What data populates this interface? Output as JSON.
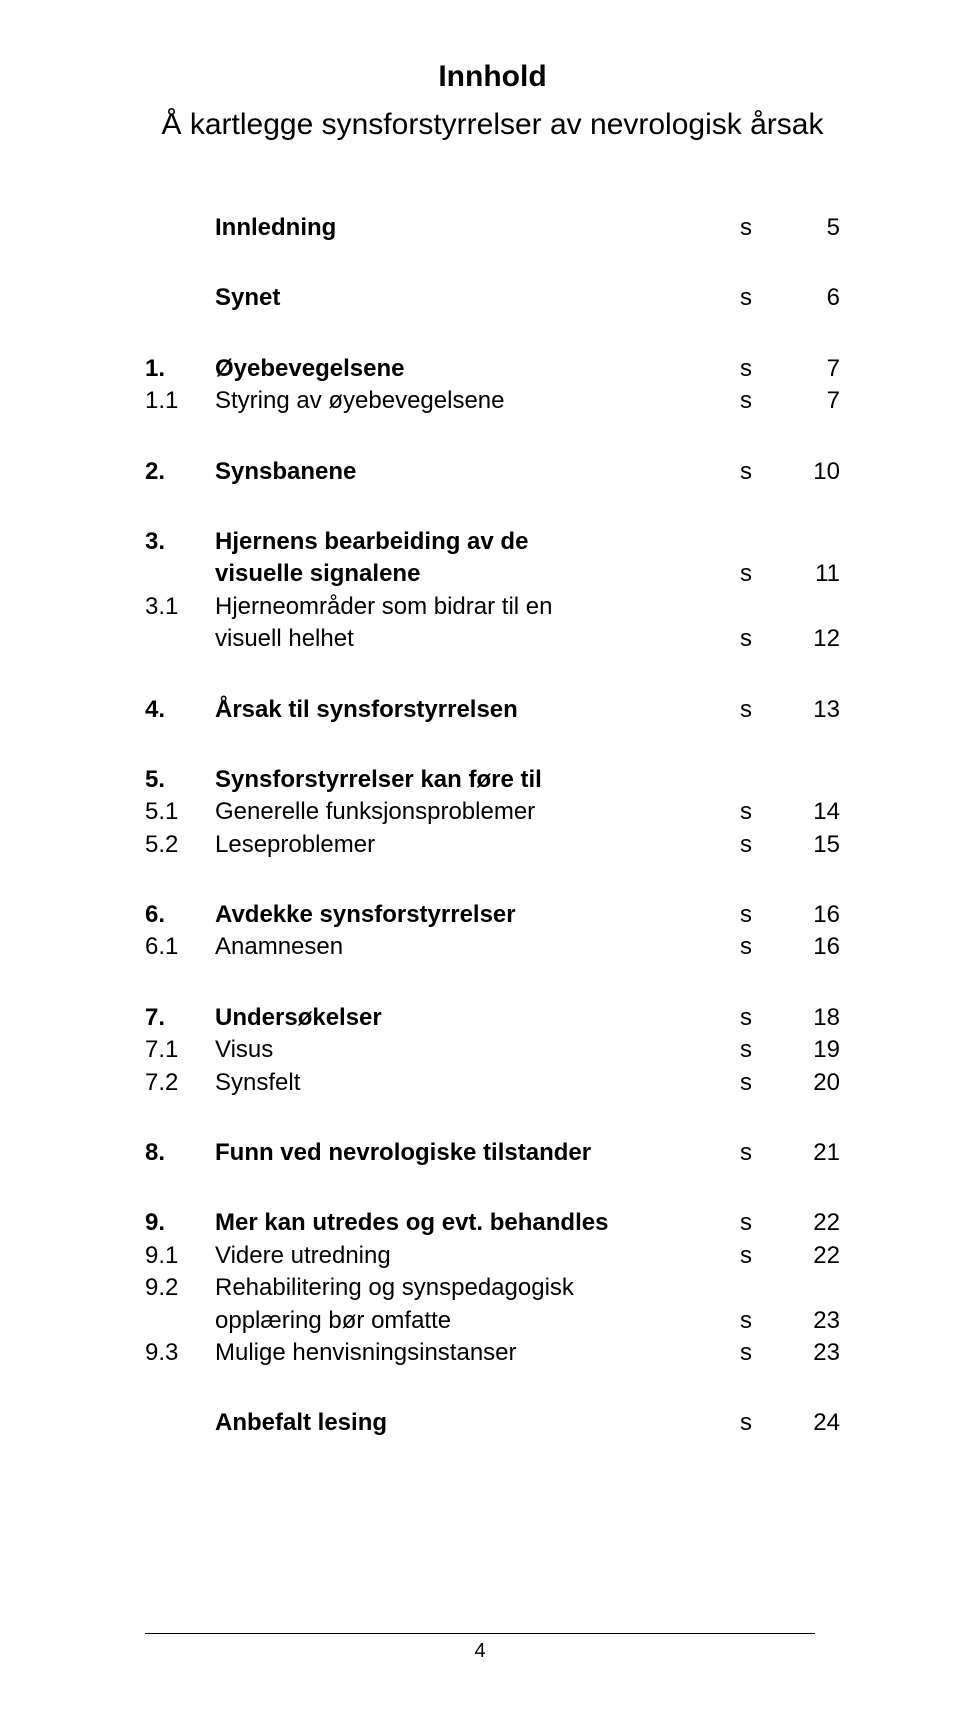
{
  "title": "Innhold",
  "subtitle": "Å kartlegge synsforstyrrelser av nevrologisk årsak",
  "s": "s",
  "toc": {
    "innledning": {
      "label": "Innledning",
      "page": "5"
    },
    "synet": {
      "label": "Synet",
      "page": "6"
    },
    "sec1": {
      "num": "1.",
      "label": "Øyebevegelsene",
      "page": "7",
      "sub1": {
        "num": "1.1",
        "label": "Styring av øyebevegelsene",
        "page": "7"
      }
    },
    "sec2": {
      "num": "2.",
      "label": "Synsbanene",
      "page": "10"
    },
    "sec3": {
      "num": "3.",
      "label_line1": "Hjernens bearbeiding av de",
      "label_line2": "visuelle signalene",
      "page": "11",
      "sub1": {
        "num": "3.1",
        "label_line1": "Hjerneområder som bidrar til en",
        "label_line2": "visuell helhet",
        "page": "12"
      }
    },
    "sec4": {
      "num": "4.",
      "label": "Årsak til synsforstyrrelsen",
      "page": "13"
    },
    "sec5": {
      "num": "5.",
      "label": "Synsforstyrrelser kan føre til",
      "sub1": {
        "num": "5.1",
        "label": "Generelle funksjonsproblemer",
        "page": "14"
      },
      "sub2": {
        "num": "5.2",
        "label": "Leseproblemer",
        "page": "15"
      }
    },
    "sec6": {
      "num": "6.",
      "label": "Avdekke synsforstyrrelser",
      "page": "16",
      "sub1": {
        "num": "6.1",
        "label": "Anamnesen",
        "page": "16"
      }
    },
    "sec7": {
      "num": "7.",
      "label": "Undersøkelser",
      "page": "18",
      "sub1": {
        "num": "7.1",
        "label": "Visus",
        "page": "19"
      },
      "sub2": {
        "num": "7.2",
        "label": "Synsfelt",
        "page": "20"
      }
    },
    "sec8": {
      "num": "8.",
      "label": "Funn ved nevrologiske tilstander",
      "page": "21"
    },
    "sec9": {
      "num": "9.",
      "label": "Mer kan utredes og evt. behandles",
      "page": "22",
      "sub1": {
        "num": "9.1",
        "label": "Videre utredning",
        "page": "22"
      },
      "sub2": {
        "num": "9.2",
        "label_line1": "Rehabilitering og synspedagogisk",
        "label_line2": "opplæring bør omfatte",
        "page": "23"
      },
      "sub3": {
        "num": "9.3",
        "label": "Mulige henvisningsinstanser",
        "page": "23"
      }
    },
    "anbefalt": {
      "label": "Anbefalt lesing",
      "page": "24"
    }
  },
  "footer_page": "4",
  "colors": {
    "text": "#000000",
    "background": "#ffffff",
    "rule": "#000000"
  },
  "fonts": {
    "family": "Arial",
    "title_size_pt": 22,
    "body_size_pt": 18
  }
}
